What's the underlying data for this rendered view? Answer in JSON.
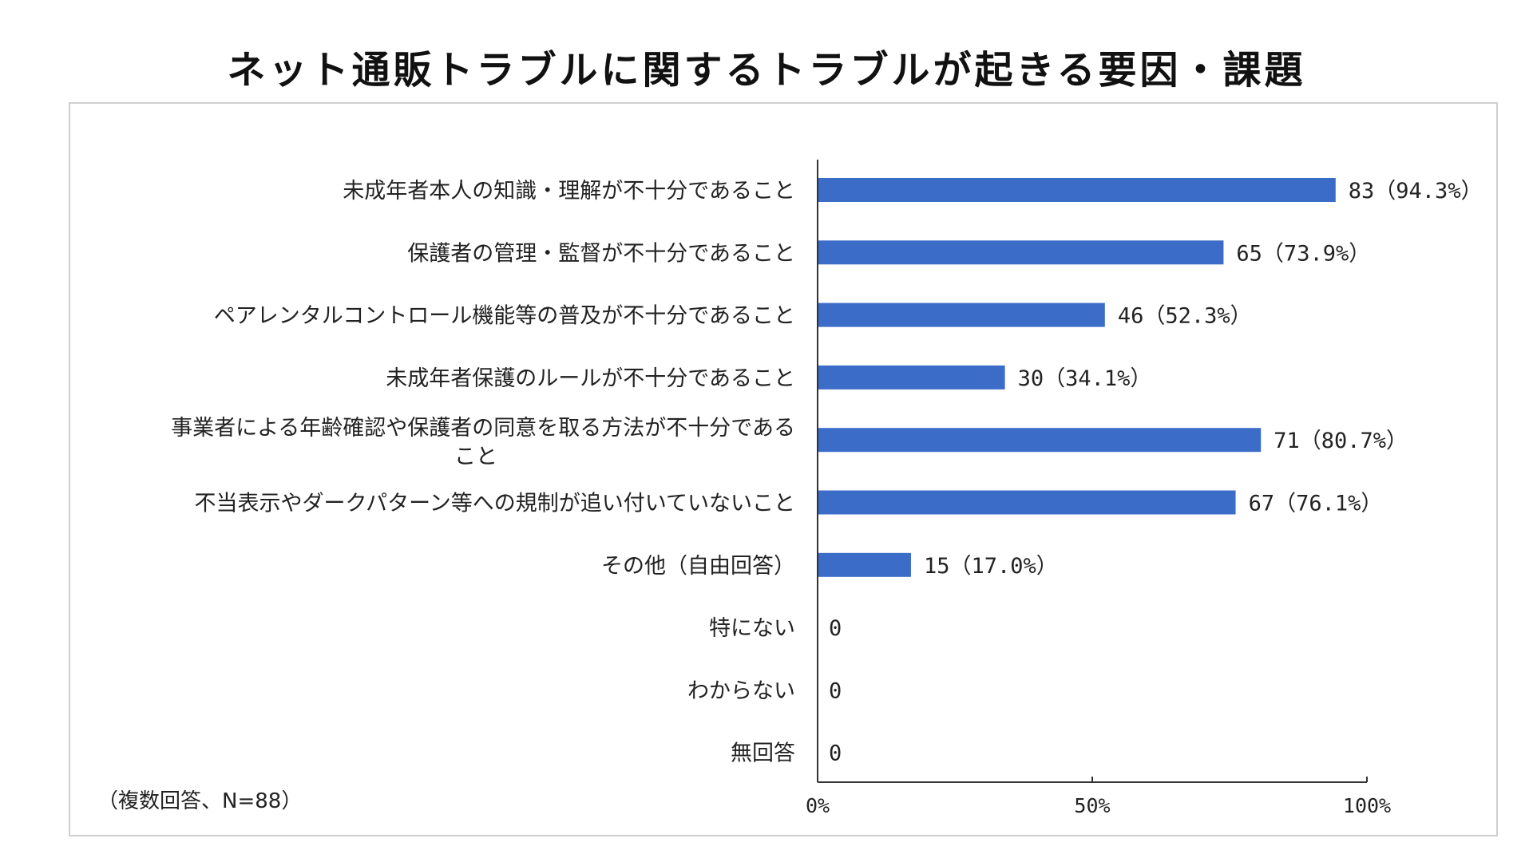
{
  "chart_data": {
    "type": "bar",
    "orientation": "horizontal",
    "title": "ネット通販トラブルに関するトラブルが起きる要因・課題",
    "note": "（複数回答、N=88）",
    "categories": [
      [
        "未成年者本人の知識・理解が不十分であること"
      ],
      [
        "保護者の管理・監督が不十分であること"
      ],
      [
        "ペアレンタルコントロール機能等の普及が不十分であること"
      ],
      [
        "未成年者保護のルールが不十分であること"
      ],
      [
        "事業者による年齢確認や保護者の同意を取る方法が不十分である",
        "こと"
      ],
      [
        "不当表示やダークパターン等への規制が追い付いていないこと"
      ],
      [
        "その他（自由回答）"
      ],
      [
        "特にない"
      ],
      [
        "わからない"
      ],
      [
        "無回答"
      ]
    ],
    "counts": [
      83,
      65,
      46,
      30,
      71,
      67,
      15,
      0,
      0,
      0
    ],
    "values": [
      94.3,
      73.9,
      52.3,
      34.1,
      80.7,
      76.1,
      17.0,
      0,
      0,
      0
    ],
    "value_labels": [
      "83（94.3%）",
      "65（73.9%）",
      "46（52.3%）",
      "30（34.1%）",
      "71（80.7%）",
      "67（76.1%）",
      "15（17.0%）",
      "0",
      "0",
      "0"
    ],
    "xlim": [
      0,
      100
    ],
    "xticks": [
      0,
      50,
      100
    ],
    "xtick_labels": [
      "0%",
      "50%",
      "100%"
    ],
    "bar_color": "#3b6cc8",
    "grid": false,
    "legend": "none"
  }
}
